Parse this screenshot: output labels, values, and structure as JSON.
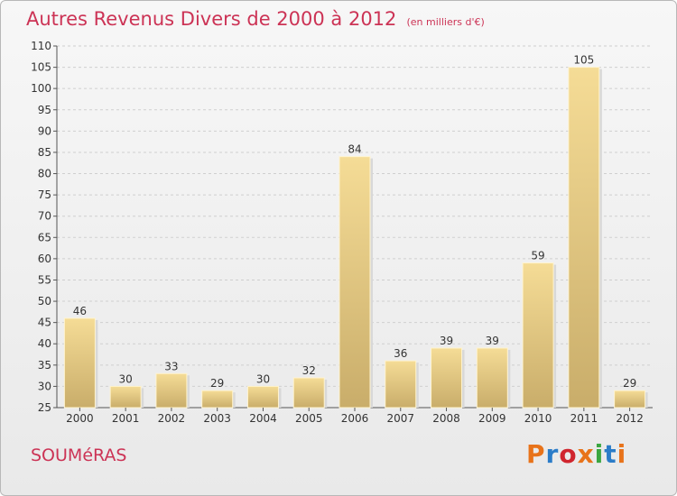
{
  "header": {
    "title": "Autres Revenus Divers de 2000 à 2012",
    "subtitle": "(en milliers d'€)"
  },
  "footer": {
    "commune": "SOUMéRAS",
    "logo": "Proxiti"
  },
  "colors": {
    "title": "#cc3355",
    "bar_light": "#f5dc96",
    "bar_dark": "#c9ad6a",
    "logo_letters": [
      "#e8731a",
      "#2b7cc8",
      "#d0252e",
      "#e8731a",
      "#3aa640",
      "#2b7cc8",
      "#e8731a"
    ]
  },
  "chart_data": {
    "type": "bar",
    "categories": [
      "2000",
      "2001",
      "2002",
      "2003",
      "2004",
      "2005",
      "2006",
      "2007",
      "2008",
      "2009",
      "2010",
      "2011",
      "2012"
    ],
    "values": [
      46,
      30,
      33,
      29,
      30,
      32,
      84,
      36,
      39,
      39,
      59,
      105,
      29
    ],
    "ylim": [
      25,
      110
    ],
    "yticks": [
      25,
      30,
      35,
      40,
      45,
      50,
      55,
      60,
      65,
      70,
      75,
      80,
      85,
      90,
      95,
      100,
      105,
      110
    ],
    "grid": true
  }
}
